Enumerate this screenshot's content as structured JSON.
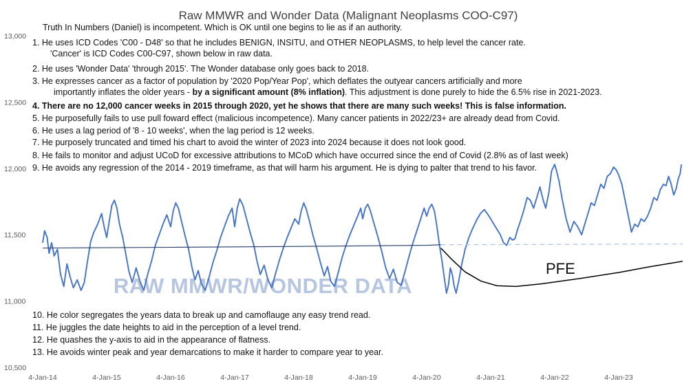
{
  "chart_data": {
    "type": "line",
    "title": "Raw MMWR and Wonder Data (Malignant Neoplasms COO-C97)",
    "xlabel": "",
    "ylabel": "",
    "ylim": [
      10500,
      13000
    ],
    "yticks": [
      "10,500",
      "11,000",
      "11,500",
      "12,000",
      "12,500",
      "13,000"
    ],
    "ytick_values": [
      10500,
      11000,
      11500,
      12000,
      12500,
      13000
    ],
    "xticks": [
      "4-Jan-14",
      "4-Jan-15",
      "4-Jan-16",
      "4-Jan-17",
      "4-Jan-18",
      "4-Jan-19",
      "4-Jan-20",
      "4-Jan-21",
      "4-Jan-22",
      "4-Jan-23"
    ],
    "xlim_years": [
      2014.0,
      2024.0
    ],
    "grid": false,
    "series": [
      {
        "color": "#4472c4",
        "points": [
          [
            2014.0,
            11440
          ],
          [
            2014.03,
            11530
          ],
          [
            2014.07,
            11480
          ],
          [
            2014.1,
            11360
          ],
          [
            2014.14,
            11440
          ],
          [
            2014.18,
            11340
          ],
          [
            2014.23,
            11390
          ],
          [
            2014.28,
            11200
          ],
          [
            2014.33,
            11110
          ],
          [
            2014.38,
            11280
          ],
          [
            2014.43,
            11180
          ],
          [
            2014.48,
            11100
          ],
          [
            2014.54,
            11160
          ],
          [
            2014.6,
            11080
          ],
          [
            2014.65,
            11140
          ],
          [
            2014.7,
            11300
          ],
          [
            2014.75,
            11450
          ],
          [
            2014.8,
            11520
          ],
          [
            2014.86,
            11580
          ],
          [
            2014.92,
            11660
          ],
          [
            2014.96,
            11560
          ],
          [
            2015.0,
            11480
          ],
          [
            2015.04,
            11600
          ],
          [
            2015.08,
            11720
          ],
          [
            2015.12,
            11760
          ],
          [
            2015.16,
            11700
          ],
          [
            2015.2,
            11580
          ],
          [
            2015.25,
            11480
          ],
          [
            2015.3,
            11350
          ],
          [
            2015.35,
            11220
          ],
          [
            2015.4,
            11140
          ],
          [
            2015.46,
            11250
          ],
          [
            2015.52,
            11150
          ],
          [
            2015.58,
            11080
          ],
          [
            2015.64,
            11200
          ],
          [
            2015.7,
            11300
          ],
          [
            2015.76,
            11420
          ],
          [
            2015.82,
            11500
          ],
          [
            2015.88,
            11580
          ],
          [
            2015.94,
            11650
          ],
          [
            2016.0,
            11560
          ],
          [
            2016.04,
            11680
          ],
          [
            2016.08,
            11740
          ],
          [
            2016.12,
            11700
          ],
          [
            2016.17,
            11600
          ],
          [
            2016.22,
            11500
          ],
          [
            2016.28,
            11390
          ],
          [
            2016.33,
            11260
          ],
          [
            2016.38,
            11160
          ],
          [
            2016.43,
            11230
          ],
          [
            2016.48,
            11130
          ],
          [
            2016.54,
            11080
          ],
          [
            2016.6,
            11180
          ],
          [
            2016.66,
            11290
          ],
          [
            2016.72,
            11380
          ],
          [
            2016.78,
            11480
          ],
          [
            2016.84,
            11560
          ],
          [
            2016.9,
            11640
          ],
          [
            2016.96,
            11700
          ],
          [
            2017.0,
            11560
          ],
          [
            2017.04,
            11700
          ],
          [
            2017.08,
            11770
          ],
          [
            2017.13,
            11720
          ],
          [
            2017.18,
            11630
          ],
          [
            2017.24,
            11520
          ],
          [
            2017.3,
            11420
          ],
          [
            2017.35,
            11300
          ],
          [
            2017.4,
            11200
          ],
          [
            2017.46,
            11270
          ],
          [
            2017.52,
            11160
          ],
          [
            2017.58,
            11100
          ],
          [
            2017.64,
            11210
          ],
          [
            2017.7,
            11310
          ],
          [
            2017.76,
            11400
          ],
          [
            2017.82,
            11480
          ],
          [
            2017.88,
            11550
          ],
          [
            2017.94,
            11620
          ],
          [
            2018.0,
            11580
          ],
          [
            2018.04,
            11680
          ],
          [
            2018.08,
            11740
          ],
          [
            2018.12,
            11690
          ],
          [
            2018.17,
            11600
          ],
          [
            2018.22,
            11500
          ],
          [
            2018.28,
            11400
          ],
          [
            2018.34,
            11290
          ],
          [
            2018.4,
            11190
          ],
          [
            2018.45,
            11260
          ],
          [
            2018.5,
            11150
          ],
          [
            2018.56,
            11110
          ],
          [
            2018.62,
            11220
          ],
          [
            2018.68,
            11330
          ],
          [
            2018.74,
            11420
          ],
          [
            2018.8,
            11500
          ],
          [
            2018.86,
            11570
          ],
          [
            2018.92,
            11640
          ],
          [
            2018.97,
            11700
          ],
          [
            2019.0,
            11620
          ],
          [
            2019.04,
            11700
          ],
          [
            2019.08,
            11730
          ],
          [
            2019.12,
            11680
          ],
          [
            2019.18,
            11580
          ],
          [
            2019.24,
            11480
          ],
          [
            2019.3,
            11370
          ],
          [
            2019.36,
            11250
          ],
          [
            2019.42,
            11170
          ],
          [
            2019.48,
            11240
          ],
          [
            2019.54,
            11140
          ],
          [
            2019.6,
            11120
          ],
          [
            2019.66,
            11220
          ],
          [
            2019.72,
            11330
          ],
          [
            2019.78,
            11430
          ],
          [
            2019.84,
            11520
          ],
          [
            2019.9,
            11610
          ],
          [
            2019.96,
            11700
          ],
          [
            2020.0,
            11640
          ],
          [
            2020.04,
            11700
          ],
          [
            2020.08,
            11730
          ],
          [
            2020.12,
            11680
          ],
          [
            2020.16,
            11560
          ],
          [
            2020.2,
            11420
          ],
          [
            2020.24,
            11300
          ],
          [
            2020.28,
            11160
          ],
          [
            2020.31,
            11060
          ],
          [
            2020.34,
            11120
          ],
          [
            2020.37,
            11250
          ],
          [
            2020.4,
            11200
          ],
          [
            2020.43,
            11110
          ],
          [
            2020.46,
            11060
          ],
          [
            2020.5,
            11150
          ],
          [
            2020.55,
            11280
          ],
          [
            2020.6,
            11390
          ],
          [
            2020.66,
            11480
          ],
          [
            2020.72,
            11550
          ],
          [
            2020.78,
            11610
          ],
          [
            2020.84,
            11660
          ],
          [
            2020.9,
            11690
          ],
          [
            2020.96,
            11650
          ],
          [
            2021.0,
            11620
          ],
          [
            2021.05,
            11580
          ],
          [
            2021.1,
            11540
          ],
          [
            2021.15,
            11500
          ],
          [
            2021.2,
            11440
          ],
          [
            2021.25,
            11420
          ],
          [
            2021.3,
            11480
          ],
          [
            2021.34,
            11460
          ],
          [
            2021.38,
            11470
          ],
          [
            2021.42,
            11540
          ],
          [
            2021.47,
            11610
          ],
          [
            2021.52,
            11690
          ],
          [
            2021.57,
            11780
          ],
          [
            2021.62,
            11760
          ],
          [
            2021.67,
            11700
          ],
          [
            2021.72,
            11780
          ],
          [
            2021.77,
            11860
          ],
          [
            2021.82,
            11760
          ],
          [
            2021.86,
            11700
          ],
          [
            2021.91,
            11820
          ],
          [
            2021.95,
            11980
          ],
          [
            2022.0,
            12030
          ],
          [
            2022.03,
            11980
          ],
          [
            2022.07,
            11900
          ],
          [
            2022.12,
            11760
          ],
          [
            2022.18,
            11620
          ],
          [
            2022.24,
            11520
          ],
          [
            2022.3,
            11600
          ],
          [
            2022.36,
            11560
          ],
          [
            2022.42,
            11500
          ],
          [
            2022.47,
            11580
          ],
          [
            2022.52,
            11660
          ],
          [
            2022.57,
            11740
          ],
          [
            2022.62,
            11720
          ],
          [
            2022.67,
            11800
          ],
          [
            2022.72,
            11880
          ],
          [
            2022.77,
            11850
          ],
          [
            2022.82,
            11940
          ],
          [
            2022.87,
            11960
          ],
          [
            2022.92,
            12010
          ],
          [
            2022.96,
            11990
          ],
          [
            2023.0,
            11950
          ],
          [
            2023.05,
            11880
          ],
          [
            2023.1,
            11760
          ],
          [
            2023.15,
            11640
          ],
          [
            2023.2,
            11520
          ],
          [
            2023.25,
            11580
          ],
          [
            2023.3,
            11560
          ],
          [
            2023.35,
            11620
          ],
          [
            2023.4,
            11600
          ],
          [
            2023.45,
            11640
          ],
          [
            2023.5,
            11700
          ],
          [
            2023.55,
            11780
          ],
          [
            2023.6,
            11760
          ],
          [
            2023.65,
            11840
          ],
          [
            2023.7,
            11880
          ],
          [
            2023.74,
            11870
          ],
          [
            2023.78,
            11940
          ],
          [
            2023.82,
            11880
          ],
          [
            2023.86,
            11800
          ],
          [
            2023.9,
            11850
          ],
          [
            2023.93,
            11920
          ],
          [
            2023.96,
            11960
          ],
          [
            2023.98,
            12030
          ]
        ]
      },
      {
        "color": "#1f3864",
        "points": [
          [
            2014.0,
            11400
          ],
          [
            2016.0,
            11405
          ],
          [
            2018.0,
            11412
          ],
          [
            2020.0,
            11420
          ],
          [
            2020.22,
            11425
          ]
        ]
      },
      {
        "color": "#b4c7e7",
        "dashed": true,
        "points": [
          [
            2020.22,
            11425
          ],
          [
            2022.0,
            11427
          ],
          [
            2024.0,
            11430
          ]
        ]
      },
      {
        "color": "#000000",
        "points": [
          [
            2020.22,
            11400
          ],
          [
            2020.4,
            11310
          ],
          [
            2020.6,
            11220
          ],
          [
            2020.85,
            11150
          ],
          [
            2021.1,
            11115
          ],
          [
            2021.4,
            11110
          ],
          [
            2021.8,
            11130
          ],
          [
            2022.4,
            11170
          ],
          [
            2023.0,
            11215
          ],
          [
            2023.5,
            11260
          ],
          [
            2024.0,
            11300
          ]
        ]
      }
    ],
    "annotations": {
      "pfe_label": "PFE",
      "watermark": "RAW MMWR/WONDER DATA",
      "notes_top": [
        {
          "text": "Truth In Numbers (Daniel) is incompetent. Which is OK until one begins to lie as if an authority.",
          "bold": false
        },
        {
          "text": "1. He uses ICD Codes 'C00 - D48'  so that he includes BENIGN, INSITU, and OTHER NEOPLASMS, to help level the cancer rate.",
          "bold": false
        },
        {
          "text": "'Cancer' is ICD Codes C00-C97,  shown below in raw data.",
          "bold": false
        },
        {
          "text": "2. He uses 'Wonder Data'  'through 2015'.  The Wonder database only goes back to 2018.",
          "bold": false
        },
        {
          "text": "3. He expresses cancer as a factor of population by '2020  Pop/Year Pop', which deflates the outyear cancers artificially and more",
          "bold": false
        },
        {
          "text": "importantly inflates the older years  -",
          "bold": false,
          "tail_bold": " by a significant amount (8% inflation)",
          "tail": ". This adjustment is done purely to hide the 6.5% rise in 2021-2023."
        },
        {
          "text": "4. There are no 12,000 cancer weeks in 2015  through 2020,  yet he shows that there are many such weeks! This is false information.",
          "bold": true
        },
        {
          "text": "5. He purposefully fails to use pull foward effect (malicious incompetence). Many cancer patients in 2022/23+  are already dead from Covid.",
          "bold": false
        },
        {
          "text": "6. He uses a lag period of '8 - 10  weeks', when the lag period is 12 weeks.",
          "bold": false
        },
        {
          "text": "7. He purposely truncated and timed his chart to avoid the winter of 2023  into 2024  because it does not look good.",
          "bold": false
        },
        {
          "text": "8. He fails to monitor and adjust UCoD for excessive attributions to MCoD which have occurred since the end of Covid (2.8% as of last week)",
          "bold": false
        },
        {
          "text": "9. He avoids any regression of the 2014  - 2019  timeframe, as that will harm his argument. He is dying to palter that trend to his favor.",
          "bold": false
        }
      ],
      "notes_bottom": [
        "10. He color segregates the years data to break up and camoflauge any easy trend read.",
        "11. He juggles the date heights to aid in the perception of a level trend.",
        "12. He quashes the y-axis to aid in the appearance of flatness.",
        "13. He avoids winter peak and year demarcations to make it harder to compare year to year."
      ]
    }
  }
}
